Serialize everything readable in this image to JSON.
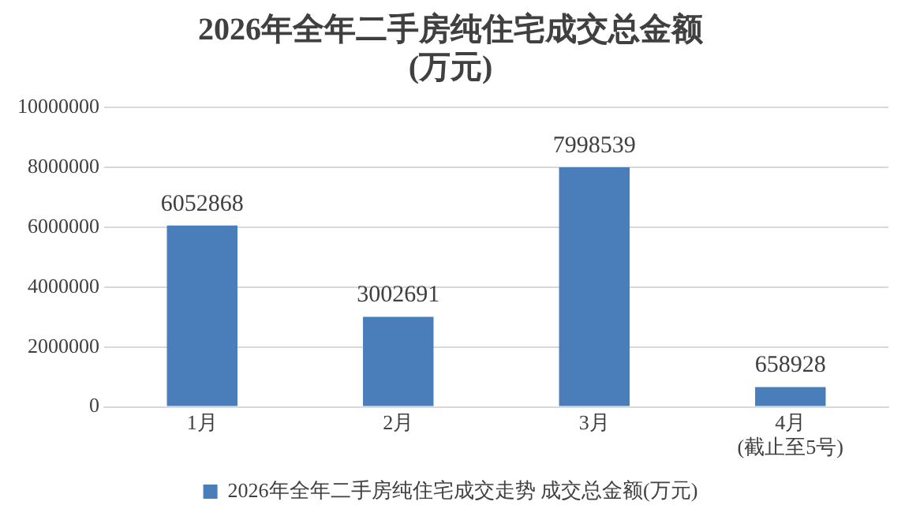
{
  "chart_data": {
    "type": "bar",
    "title": "2026年全年二手房纯住宅成交总金额\n(万元)",
    "categories": [
      "1月",
      "2月",
      "3月",
      "4月\n(截止至5号)"
    ],
    "series": [
      {
        "name": "2026年全年二手房纯住宅成交走势 成交总金额(万元)",
        "color": "#4a7ebb",
        "values": [
          6052868,
          3002691,
          7998539,
          658928
        ]
      }
    ],
    "ylim": [
      0,
      10000000
    ],
    "yticks": [
      0,
      2000000,
      4000000,
      6000000,
      8000000,
      10000000
    ],
    "grid": "y",
    "legend": "bottom",
    "data_labels": true
  }
}
